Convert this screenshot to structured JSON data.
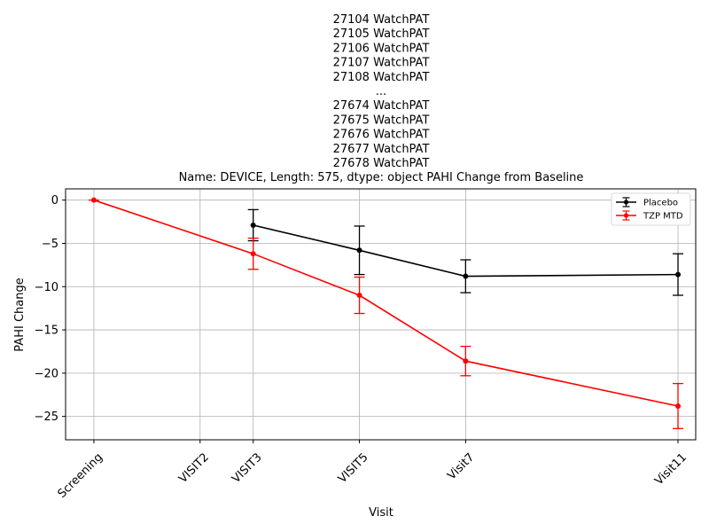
{
  "chart_data": {
    "type": "line",
    "title_lines": [
      "27104    WatchPAT",
      "27105    WatchPAT",
      "27106    WatchPAT",
      "27107    WatchPAT",
      "27108    WatchPAT",
      "...",
      "27674    WatchPAT",
      "27675    WatchPAT",
      "27676    WatchPAT",
      "27677    WatchPAT",
      "27678    WatchPAT",
      "Name: DEVICE, Length: 575, dtype: object PAHI Change from Baseline"
    ],
    "xlabel": "Visit",
    "ylabel": "PAHI Change",
    "x_ticks": [
      {
        "label": "Screening",
        "day": -30
      },
      {
        "label": "VISIT2",
        "day": 0
      },
      {
        "label": "VISIT3",
        "day": 15
      },
      {
        "label": "VISIT5",
        "day": 45
      },
      {
        "label": "Visit7",
        "day": 75
      },
      {
        "label": "Visit11",
        "day": 135
      }
    ],
    "xlim": [
      -38,
      140
    ],
    "ylim": [
      -27.7,
      1.3
    ],
    "y_ticks": [
      0,
      -5,
      -10,
      -15,
      -20,
      -25
    ],
    "y_tick_labels": [
      "0",
      "−5",
      "−10",
      "−15",
      "−20",
      "−25"
    ],
    "grid": true,
    "legend_position": "top-right",
    "colors": {
      "placebo": "#000000",
      "tzp": "#ff0000",
      "grid": "#b0b0b0"
    },
    "series": [
      {
        "name": "Placebo",
        "color": "#000000",
        "points": [
          {
            "x": 15,
            "y": -2.9,
            "err": 1.8
          },
          {
            "x": 45,
            "y": -5.8,
            "err": 2.8
          },
          {
            "x": 75,
            "y": -8.8,
            "err": 1.9
          },
          {
            "x": 135,
            "y": -8.6,
            "err": 2.4
          }
        ]
      },
      {
        "name": "TZP MTD",
        "color": "#ff0000",
        "points": [
          {
            "x": -30,
            "y": 0.0,
            "err": 0.0
          },
          {
            "x": 15,
            "y": -6.2,
            "err": 1.8
          },
          {
            "x": 45,
            "y": -11.0,
            "err": 2.1
          },
          {
            "x": 75,
            "y": -18.6,
            "err": 1.7
          },
          {
            "x": 135,
            "y": -23.8,
            "err": 2.6
          }
        ]
      }
    ]
  }
}
